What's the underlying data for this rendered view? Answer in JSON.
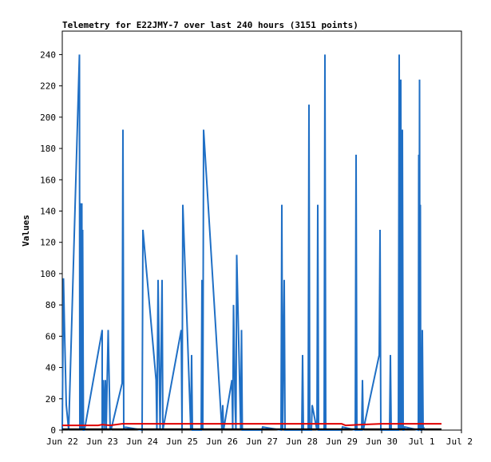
{
  "chart_data": {
    "type": "line",
    "title": "Telemetry for E22JMY-7 over last 240 hours (3151 points)",
    "xlabel": "",
    "ylabel": "Values",
    "ylim": [
      0,
      255
    ],
    "xlim": [
      0,
      10
    ],
    "yticks": [
      0,
      20,
      40,
      60,
      80,
      100,
      120,
      140,
      160,
      180,
      200,
      220,
      240
    ],
    "xticks": [
      {
        "x": 0,
        "label": "Jun 22"
      },
      {
        "x": 1,
        "label": "Jun 23"
      },
      {
        "x": 2,
        "label": "Jun 24"
      },
      {
        "x": 3,
        "label": "Jun 25"
      },
      {
        "x": 4,
        "label": "Jun 26"
      },
      {
        "x": 5,
        "label": "Jun 27"
      },
      {
        "x": 6,
        "label": "Jun 28"
      },
      {
        "x": 7,
        "label": "Jun 29"
      },
      {
        "x": 8,
        "label": "Jun 30"
      },
      {
        "x": 9,
        "label": "Jul 1"
      },
      {
        "x": 10,
        "label": "Jul 2"
      }
    ],
    "grid": false,
    "series": [
      {
        "color": "#1f6fc5",
        "x": [
          0.0,
          0.03,
          0.06,
          0.1,
          0.13,
          0.16,
          0.43,
          0.44,
          0.455,
          0.47,
          0.49,
          0.5,
          0.51,
          0.53,
          0.55,
          0.57,
          1.0,
          1.0,
          1.03,
          1.05,
          1.08,
          1.1,
          1.15,
          1.2,
          1.21,
          1.22,
          1.5,
          1.52,
          1.54,
          1.55,
          2.0,
          2.02,
          2.35,
          2.37,
          2.4,
          2.45,
          2.5,
          2.52,
          2.98,
          3.0,
          3.02,
          3.22,
          3.24,
          3.26,
          3.48,
          3.5,
          3.52,
          3.54,
          4.0,
          4.02,
          4.04,
          4.25,
          4.27,
          4.29,
          4.33,
          4.35,
          4.37,
          4.47,
          4.49,
          4.51,
          5.0,
          5.02,
          5.48,
          5.5,
          5.52,
          5.56,
          5.58,
          6.0,
          6.02,
          6.04,
          6.16,
          6.18,
          6.2,
          6.24,
          6.26,
          6.38,
          6.4,
          6.42,
          6.56,
          6.58,
          6.6,
          7.0,
          7.02,
          7.34,
          7.36,
          7.38,
          7.5,
          7.52,
          7.54,
          7.94,
          7.96,
          7.98,
          8.2,
          8.22,
          8.24,
          8.42,
          8.44,
          8.46,
          8.48,
          8.5,
          8.52,
          8.54,
          8.56,
          8.58,
          8.92,
          8.93,
          8.94,
          8.95,
          8.96,
          8.97,
          8.98,
          9.0,
          9.02,
          9.04,
          9.06
        ],
        "y": [
          0,
          97,
          60,
          16,
          8,
          0,
          240,
          0,
          145,
          0,
          145,
          0,
          128,
          0,
          0,
          2,
          64,
          0,
          32,
          0,
          32,
          0,
          64,
          0,
          2,
          0,
          30,
          192,
          0,
          2,
          0,
          128,
          32,
          0,
          96,
          0,
          96,
          0,
          64,
          0,
          144,
          0,
          48,
          0,
          0,
          96,
          0,
          192,
          0,
          16,
          0,
          32,
          0,
          80,
          16,
          0,
          112,
          0,
          64,
          0,
          0,
          2,
          0,
          144,
          0,
          96,
          0,
          0,
          48,
          0,
          0,
          208,
          0,
          0,
          16,
          0,
          144,
          0,
          0,
          240,
          0,
          0,
          2,
          0,
          176,
          0,
          0,
          32,
          0,
          48,
          128,
          0,
          0,
          48,
          0,
          0,
          240,
          0,
          224,
          0,
          192,
          0,
          0,
          2,
          0,
          176,
          0,
          224,
          0,
          144,
          0,
          0,
          64,
          0,
          2
        ]
      },
      {
        "color": "#e00000",
        "x": [
          0.0,
          0.43,
          0.5,
          0.9,
          1.0,
          1.2,
          1.5,
          2.0,
          3.0,
          4.0,
          4.5,
          5.0,
          6.0,
          7.0,
          7.1,
          7.5,
          8.0,
          9.0,
          9.5
        ],
        "y": [
          3,
          3,
          3,
          3,
          3.5,
          3,
          4,
          4,
          4,
          4,
          4,
          4,
          4,
          4,
          3,
          3.5,
          4,
          4,
          4
        ]
      },
      {
        "color": "#000000",
        "x": [
          0.0,
          9.5
        ],
        "y": [
          0.6,
          0.6
        ]
      }
    ]
  }
}
